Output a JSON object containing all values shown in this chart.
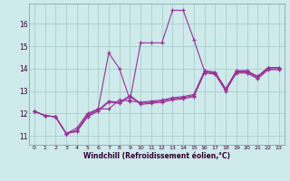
{
  "xlabel": "Windchill (Refroidissement éolien,°C)",
  "bg_color": "#ceeaea",
  "grid_color": "#aacece",
  "line_color": "#993399",
  "xlim": [
    -0.5,
    23.5
  ],
  "ylim": [
    10.6,
    16.9
  ],
  "yticks": [
    11,
    12,
    13,
    14,
    15,
    16
  ],
  "xticks": [
    0,
    1,
    2,
    3,
    4,
    5,
    6,
    7,
    8,
    9,
    10,
    11,
    12,
    13,
    14,
    15,
    16,
    17,
    18,
    19,
    20,
    21,
    22,
    23
  ],
  "series": [
    [
      12.1,
      11.9,
      11.85,
      11.1,
      11.25,
      11.95,
      12.15,
      12.55,
      12.5,
      12.8,
      12.45,
      12.5,
      12.55,
      12.65,
      12.7,
      12.8,
      13.85,
      13.8,
      13.05,
      13.85,
      13.85,
      13.6,
      14.0,
      14.0
    ],
    [
      12.1,
      11.9,
      11.85,
      11.1,
      11.35,
      12.0,
      12.2,
      12.2,
      12.6,
      12.55,
      12.5,
      12.55,
      12.6,
      12.7,
      12.75,
      12.85,
      13.9,
      13.85,
      13.1,
      13.9,
      13.9,
      13.65,
      14.05,
      14.05
    ],
    [
      12.1,
      11.9,
      11.85,
      11.1,
      11.2,
      11.85,
      12.1,
      12.5,
      12.45,
      12.75,
      12.4,
      12.45,
      12.5,
      12.6,
      12.65,
      12.75,
      13.8,
      13.75,
      13.0,
      13.8,
      13.8,
      13.55,
      13.95,
      13.95
    ],
    [
      12.1,
      11.9,
      11.85,
      11.1,
      11.2,
      11.85,
      12.2,
      14.7,
      14.0,
      12.6,
      15.15,
      15.15,
      15.15,
      16.6,
      16.6,
      15.3,
      13.9,
      13.8,
      13.05,
      13.9,
      13.9,
      13.65,
      14.05,
      14.05
    ]
  ]
}
